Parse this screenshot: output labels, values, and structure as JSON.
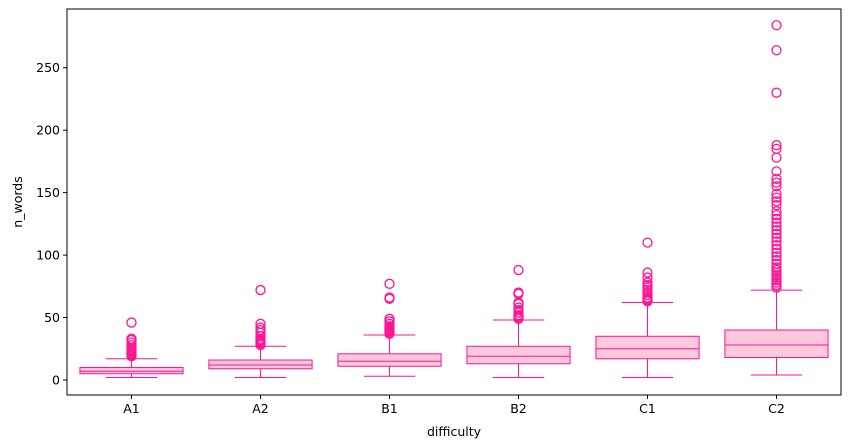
{
  "chart_data": {
    "type": "box",
    "xlabel": "difficulty",
    "ylabel": "n_words",
    "ylim": [
      -12,
      297
    ],
    "yticks": [
      0,
      50,
      100,
      150,
      200,
      250
    ],
    "categories": [
      "A1",
      "A2",
      "B1",
      "B2",
      "C1",
      "C2"
    ],
    "box_fill": "#fbc8dc",
    "box_stroke": "#ff1493",
    "boxes": [
      {
        "category": "A1",
        "whisker_low": 2,
        "q1": 5,
        "median": 7,
        "q3": 10,
        "whisker_high": 17,
        "outliers": [
          19,
          20,
          21,
          22,
          23,
          24,
          25,
          26,
          28,
          30,
          32,
          33,
          46
        ]
      },
      {
        "category": "A2",
        "whisker_low": 2,
        "q1": 9,
        "median": 12,
        "q3": 16,
        "whisker_high": 27,
        "outliers": [
          28,
          29,
          30,
          31,
          32,
          33,
          35,
          38,
          40,
          42,
          45,
          72
        ]
      },
      {
        "category": "B1",
        "whisker_low": 3,
        "q1": 11,
        "median": 15,
        "q3": 21,
        "whisker_high": 36,
        "outliers": [
          37,
          38,
          39,
          40,
          41,
          42,
          43,
          45,
          47,
          49,
          65,
          66,
          77
        ]
      },
      {
        "category": "B2",
        "whisker_low": 2,
        "q1": 13,
        "median": 19,
        "q3": 27,
        "whisker_high": 48,
        "outliers": [
          49,
          50,
          51,
          52,
          54,
          56,
          58,
          61,
          62,
          69,
          70,
          88
        ]
      },
      {
        "category": "C1",
        "whisker_low": 2,
        "q1": 17,
        "median": 25,
        "q3": 35,
        "whisker_high": 62,
        "outliers": [
          63,
          64,
          65,
          66,
          68,
          70,
          72,
          74,
          76,
          78,
          82,
          86,
          110
        ]
      },
      {
        "category": "C2",
        "whisker_low": 4,
        "q1": 18,
        "median": 28,
        "q3": 40,
        "whisker_high": 72,
        "outliers": [
          74,
          76,
          78,
          80,
          82,
          84,
          86,
          88,
          90,
          93,
          96,
          99,
          102,
          105,
          108,
          111,
          114,
          117,
          120,
          123,
          126,
          129,
          132,
          135,
          140,
          143,
          146,
          149,
          155,
          158,
          161,
          167,
          178,
          185,
          188,
          230,
          264,
          284
        ]
      }
    ]
  }
}
